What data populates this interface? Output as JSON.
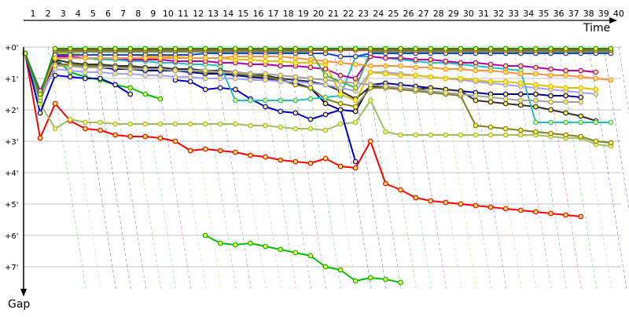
{
  "chart_data": {
    "type": "line",
    "title": "",
    "xlabel": "Time",
    "ylabel": "Gap",
    "x_ticks": [
      "1",
      "2",
      "3",
      "4",
      "5",
      "6",
      "7",
      "8",
      "9",
      "10",
      "11",
      "12",
      "13",
      "14",
      "15",
      "16",
      "17",
      "18",
      "19",
      "20",
      "21",
      "22",
      "23",
      "24",
      "25",
      "26",
      "27",
      "28",
      "29",
      "30",
      "31",
      "32",
      "33",
      "34",
      "35",
      "36",
      "37",
      "38",
      "39",
      "40"
    ],
    "y_ticks": [
      "+0'",
      "+1'",
      "+2'",
      "+3'",
      "+4'",
      "+5'",
      "+6'",
      "+7'"
    ],
    "ylim": [
      0,
      7.6
    ],
    "grid": true,
    "colors": {
      "grid": "#888888",
      "axis": "#000000",
      "text": "#000000"
    },
    "series": [
      {
        "color": "#ff0000",
        "values": [
          0.2,
          2.9,
          1.8,
          2.35,
          2.6,
          2.65,
          2.8,
          2.85,
          2.85,
          2.9,
          3.0,
          3.3,
          3.25,
          3.3,
          3.35,
          3.45,
          3.5,
          3.6,
          3.65,
          3.7,
          3.55,
          3.8,
          3.85,
          3.0,
          4.35,
          4.55,
          4.8,
          4.9,
          4.95,
          5.0,
          5.05,
          5.1,
          5.15,
          5.2,
          5.25,
          5.3,
          5.35,
          5.4
        ]
      },
      {
        "color": "#00c000",
        "values": [
          0.2,
          1.7,
          0.35,
          0.8,
          0.95,
          1.05,
          1.2,
          1.3,
          1.5,
          1.65,
          null,
          null,
          6.0,
          6.25,
          6.3,
          6.25,
          6.35,
          6.45,
          6.55,
          6.65,
          7.0,
          7.1,
          7.45,
          7.35,
          7.4,
          7.5
        ]
      },
      {
        "color": "#9fbf60",
        "values": [
          0.2,
          1.8,
          2.6,
          2.3,
          2.4,
          2.4,
          2.45,
          2.45,
          2.45,
          2.45,
          2.45,
          2.45,
          2.45,
          2.45,
          2.45,
          2.5,
          2.5,
          2.55,
          2.6,
          2.6,
          2.65,
          2.45,
          2.4,
          1.7,
          2.7,
          2.8,
          2.8,
          2.8,
          2.8,
          2.8,
          2.8,
          2.8,
          2.8,
          2.8,
          2.8,
          2.85,
          2.9,
          2.9,
          3.1,
          3.15
        ]
      },
      {
        "color": "#0000cc",
        "values": [
          0.2,
          2.1,
          0.9,
          0.95,
          1.0,
          1.0,
          1.2,
          1.5,
          null,
          null,
          1.05,
          1.1,
          1.35,
          1.3,
          1.35,
          1.65,
          1.9,
          2.05,
          2.1,
          2.3,
          2.15,
          2.0,
          3.65
        ]
      },
      {
        "color": "#000090",
        "values": [
          0.2,
          1.6,
          0.5,
          0.6,
          0.65,
          0.65,
          0.7,
          0.7,
          0.75,
          0.75,
          0.75,
          0.8,
          0.85,
          0.85,
          0.9,
          0.95,
          1.0,
          1.05,
          1.15,
          1.3,
          1.8,
          2.0,
          2.05,
          1.2,
          1.15,
          1.2,
          1.25,
          1.3,
          1.35,
          1.4,
          1.45,
          1.5,
          1.5,
          1.5,
          1.5,
          1.55,
          1.55,
          1.6
        ]
      },
      {
        "color": "#303030",
        "values": [
          0.2,
          1.5,
          0.4,
          0.5,
          0.55,
          0.55,
          0.6,
          0.6,
          0.65,
          0.65,
          0.7,
          0.7,
          0.75,
          0.75,
          0.8,
          0.85,
          0.9,
          1.0,
          1.05,
          1.1,
          1.2,
          1.4,
          1.65,
          1.25,
          1.25,
          1.3,
          1.35,
          1.3,
          1.35,
          1.4,
          1.7,
          1.75,
          1.8,
          1.85,
          1.9,
          2.0,
          2.1,
          2.2,
          2.35
        ]
      },
      {
        "color": "#808020",
        "values": [
          0.2,
          1.7,
          0.55,
          0.55,
          0.6,
          0.6,
          0.65,
          0.65,
          0.7,
          0.7,
          0.75,
          0.75,
          0.8,
          0.8,
          0.85,
          0.9,
          0.95,
          1.05,
          1.2,
          1.3,
          1.65,
          1.8,
          1.9,
          1.3,
          1.3,
          1.35,
          1.4,
          1.45,
          1.5,
          1.55,
          2.5,
          2.55,
          2.6,
          2.65,
          2.7,
          2.75,
          2.8,
          2.85,
          3.0,
          3.05
        ]
      },
      {
        "color": "#20c0c0",
        "values": [
          0.2,
          1.5,
          0.3,
          0.35,
          0.35,
          0.4,
          0.4,
          0.45,
          0.45,
          0.5,
          0.5,
          0.55,
          0.55,
          0.6,
          1.7,
          1.7,
          1.7,
          1.7,
          1.7,
          1.65,
          1.6,
          1.55,
          0.3,
          0.3,
          0.35,
          0.4,
          0.45,
          0.5,
          0.5,
          0.55,
          0.6,
          0.65,
          0.7,
          0.75,
          2.4,
          2.4,
          2.4,
          2.4,
          2.4,
          2.4
        ]
      },
      {
        "color": "#b000b0",
        "values": [
          0.2,
          1.4,
          0.3,
          0.3,
          0.35,
          0.35,
          0.35,
          0.4,
          0.4,
          0.4,
          0.45,
          0.45,
          0.45,
          0.5,
          0.5,
          0.55,
          0.55,
          0.6,
          0.6,
          0.65,
          0.7,
          0.9,
          1.0,
          0.3,
          0.35,
          0.35,
          0.4,
          0.4,
          0.45,
          0.5,
          0.5,
          0.55,
          0.6,
          0.6,
          0.65,
          0.7,
          0.75,
          0.75,
          0.8
        ]
      },
      {
        "color": "#a0a0ff",
        "values": [
          0.2,
          1.6,
          0.7,
          0.75,
          0.8,
          0.8,
          0.85,
          0.85,
          0.9,
          0.9,
          0.95,
          0.95,
          1.0,
          1.0,
          1.0,
          1.05,
          1.05,
          1.1,
          1.1,
          1.15,
          1.2,
          1.3,
          1.4,
          0.8,
          0.8,
          0.85,
          0.9,
          0.95,
          1.0,
          1.05,
          1.1,
          1.15,
          1.2,
          1.25,
          1.3,
          1.35,
          1.4,
          1.45,
          1.5
        ]
      },
      {
        "color": "#e0c000",
        "values": [
          0.2,
          1.5,
          0.2,
          0.2,
          0.25,
          0.25,
          0.25,
          0.25,
          0.3,
          0.3,
          0.3,
          0.35,
          0.35,
          0.35,
          0.4,
          0.4,
          0.45,
          0.45,
          0.5,
          0.5,
          0.55,
          1.5,
          1.7,
          0.8,
          0.85,
          0.9,
          0.9,
          0.95,
          1.0,
          1.0,
          1.05,
          1.1,
          1.1,
          1.15,
          1.2,
          1.25,
          1.3,
          1.3,
          1.35
        ]
      },
      {
        "color": "#40b040",
        "values": [
          0.2,
          1.7,
          0.15,
          0.15,
          0.15,
          0.15,
          0.15,
          0.15,
          0.15,
          0.15,
          0.15,
          0.15,
          0.15,
          0.15,
          0.15,
          0.15,
          0.15,
          0.15,
          0.15,
          0.15,
          0.9,
          1.1,
          1.3,
          0.15,
          0.15,
          0.15,
          0.15,
          0.15,
          0.15,
          0.15,
          0.15,
          0.15,
          0.15,
          0.15,
          0.15,
          0.15,
          0.15,
          0.15,
          0.15,
          0.15
        ]
      },
      {
        "color": "#2040e0",
        "values": [
          0.2,
          1.6,
          0.25,
          0.25,
          0.25,
          0.25,
          0.25,
          0.25,
          0.25,
          0.25,
          0.25,
          0.25,
          0.2,
          0.2,
          0.2,
          0.2,
          0.2,
          0.2,
          0.2,
          0.2,
          0.2,
          0.3,
          0.3,
          0.2,
          0.2,
          0.2,
          0.2,
          0.2,
          0.2,
          0.2,
          0.2,
          0.2,
          0.2,
          0.2,
          0.2,
          0.2,
          0.2,
          0.2,
          0.2,
          0.2
        ]
      },
      {
        "color": "#ff9040",
        "values": [
          0.2,
          1.5,
          0.35,
          0.35,
          0.35,
          0.35,
          0.35,
          0.35,
          0.35,
          0.35,
          0.35,
          0.35,
          0.35,
          0.35,
          0.3,
          0.3,
          0.3,
          0.3,
          0.35,
          0.4,
          0.45,
          0.5,
          0.55,
          0.6,
          0.6,
          0.6,
          0.65,
          0.65,
          0.7,
          0.7,
          0.75,
          0.75,
          0.8,
          0.85,
          0.85,
          0.9,
          0.9,
          0.95,
          1.0,
          1.05
        ]
      },
      {
        "color": "#a0a0a0",
        "values": [
          0.2,
          1.6,
          0.6,
          0.6,
          0.65,
          0.65,
          0.65,
          0.7,
          0.7,
          0.7,
          0.75,
          0.75,
          0.75,
          0.8,
          0.8,
          0.85,
          0.85,
          0.9,
          0.95,
          1.0,
          1.05,
          1.1,
          1.15,
          1.2,
          1.25,
          1.3,
          1.35,
          1.4,
          1.45,
          1.5,
          1.55,
          1.6,
          1.65,
          1.7,
          1.7,
          1.75,
          1.75,
          1.75
        ]
      },
      {
        "color": "#e04040",
        "values": [
          0.2,
          1.5,
          0.1,
          0.1,
          0.1,
          0.1,
          0.1,
          0.1,
          0.1,
          0.1,
          0.1,
          0.1,
          0.1,
          0.1,
          0.1,
          0.1,
          0.1,
          0.1,
          0.1,
          0.1,
          0.1,
          0.1,
          0.1,
          0.1,
          0.1,
          0.1,
          0.1,
          0.1,
          0.1,
          0.1,
          0.1,
          0.1,
          0.1,
          0.1,
          0.1,
          0.1,
          0.1,
          0.1,
          0.1,
          0.1
        ]
      },
      {
        "color": "#00a000",
        "values": [
          0.2,
          1.5,
          0.05,
          0.05,
          0.05,
          0.05,
          0.05,
          0.05,
          0.05,
          0.05,
          0.05,
          0.05,
          0.05,
          0.05,
          0.05,
          0.05,
          0.05,
          0.05,
          0.05,
          0.05,
          0.05,
          0.05,
          0.05,
          0.05,
          0.05,
          0.05,
          0.05,
          0.05,
          0.05,
          0.05,
          0.05,
          0.05,
          0.05,
          0.05,
          0.05,
          0.05,
          0.05,
          0.05,
          0.05,
          0.05
        ]
      }
    ]
  }
}
